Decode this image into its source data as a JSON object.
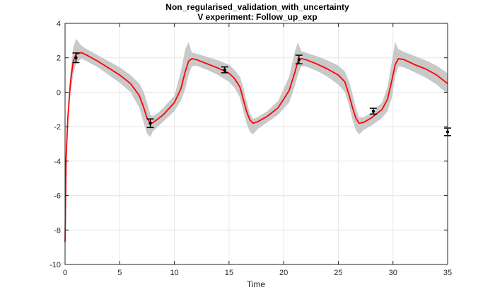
{
  "chart_data": {
    "type": "line",
    "title": "Non_regularised_validation_with_uncertainty",
    "subtitle": "V experiment: Follow_up_exp",
    "xlabel": "Time",
    "ylabel": "",
    "xlim": [
      0,
      35
    ],
    "ylim": [
      -10,
      4
    ],
    "xticks": [
      0,
      5,
      10,
      15,
      20,
      25,
      30,
      35
    ],
    "yticks": [
      -10,
      -8,
      -6,
      -4,
      -2,
      0,
      2,
      4
    ],
    "xtick_labels": [
      "0",
      "5",
      "10",
      "15",
      "20",
      "25",
      "30",
      "35"
    ],
    "ytick_labels": [
      "-10",
      "-8",
      "-6",
      "-4",
      "-2",
      "0",
      "2",
      "4"
    ],
    "grid": true,
    "box": true,
    "series": [
      {
        "kind": "line",
        "color": "#ff0000",
        "x": [
          0,
          0.1,
          0.25,
          0.5,
          0.75,
          1.0,
          1.5,
          2,
          3,
          4,
          5,
          6,
          6.8,
          7.2,
          7.5,
          7.8,
          8.0,
          8.5,
          9,
          10,
          10.6,
          11.0,
          11.3,
          11.6,
          12,
          13,
          14,
          15,
          15.5,
          16.0,
          16.3,
          16.6,
          16.9,
          17.2,
          17.6,
          18.5,
          19.5,
          20.5,
          21.0,
          21.3,
          21.6,
          22,
          23,
          24,
          25,
          25.6,
          26.0,
          26.3,
          26.6,
          26.9,
          27.3,
          28,
          29,
          29.5,
          29.9,
          30.2,
          30.5,
          31,
          32,
          33,
          34,
          35
        ],
        "y": [
          -8.7,
          -3.8,
          -1.5,
          0.6,
          1.8,
          2.2,
          2.3,
          2.15,
          1.8,
          1.4,
          1.0,
          0.5,
          -0.2,
          -0.9,
          -1.5,
          -1.8,
          -1.78,
          -1.55,
          -1.3,
          -0.6,
          0.2,
          1.2,
          1.8,
          1.95,
          1.9,
          1.65,
          1.4,
          1.1,
          0.8,
          0.3,
          -0.4,
          -1.1,
          -1.6,
          -1.8,
          -1.72,
          -1.4,
          -0.9,
          0.1,
          1.1,
          1.8,
          1.95,
          1.9,
          1.65,
          1.35,
          1.0,
          0.6,
          -0.2,
          -0.9,
          -1.5,
          -1.8,
          -1.75,
          -1.5,
          -1.0,
          -0.4,
          0.7,
          1.6,
          1.95,
          1.9,
          1.6,
          1.35,
          1.0,
          0.5
        ]
      },
      {
        "kind": "band",
        "color": "#c9c9c9",
        "x": [
          0,
          0.1,
          0.25,
          0.5,
          0.75,
          1.0,
          1.5,
          2,
          3,
          4,
          5,
          6,
          6.8,
          7.2,
          7.5,
          7.8,
          8.0,
          8.5,
          9,
          10,
          10.6,
          11.0,
          11.3,
          11.6,
          12,
          13,
          14,
          15,
          15.5,
          16.0,
          16.3,
          16.6,
          16.9,
          17.2,
          17.6,
          18.5,
          19.5,
          20.5,
          21.0,
          21.3,
          21.6,
          22,
          23,
          24,
          25,
          25.6,
          26.0,
          26.3,
          26.6,
          26.9,
          27.3,
          28,
          29,
          29.5,
          29.9,
          30.2,
          30.5,
          31,
          32,
          33,
          34,
          35
        ],
        "upper": [
          -8.6,
          -3.5,
          -1.1,
          1.2,
          2.6,
          3.1,
          2.7,
          2.5,
          2.15,
          1.8,
          1.45,
          1.0,
          0.5,
          0.0,
          -0.6,
          -1.3,
          -1.4,
          -1.2,
          -0.9,
          -0.2,
          1.2,
          2.5,
          2.9,
          2.3,
          2.25,
          2.05,
          1.85,
          1.6,
          1.3,
          0.9,
          0.3,
          -0.5,
          -1.2,
          -1.55,
          -1.45,
          -1.1,
          -0.5,
          0.9,
          2.3,
          2.9,
          2.4,
          2.3,
          2.1,
          1.85,
          1.55,
          1.2,
          0.6,
          -0.1,
          -0.9,
          -1.45,
          -1.45,
          -1.2,
          -0.6,
          0.3,
          1.8,
          2.9,
          2.5,
          2.35,
          2.1,
          1.85,
          1.55,
          1.1
        ],
        "lower": [
          -8.8,
          -4.1,
          -1.9,
          0.0,
          1.0,
          1.7,
          1.95,
          1.8,
          1.45,
          1.0,
          0.55,
          0.0,
          -0.9,
          -1.8,
          -2.4,
          -2.6,
          -2.3,
          -2.0,
          -1.7,
          -1.1,
          -0.5,
          0.2,
          1.0,
          1.5,
          1.55,
          1.3,
          1.0,
          0.6,
          0.25,
          -0.3,
          -1.1,
          -1.8,
          -2.3,
          -2.45,
          -2.15,
          -1.75,
          -1.3,
          -0.6,
          0.3,
          1.0,
          1.5,
          1.5,
          1.25,
          0.9,
          0.45,
          0.0,
          -0.8,
          -1.6,
          -2.2,
          -2.45,
          -2.2,
          -1.95,
          -1.5,
          -1.1,
          -0.3,
          0.9,
          1.5,
          1.45,
          1.15,
          0.85,
          0.45,
          -0.1
        ]
      },
      {
        "kind": "errorbar",
        "color": "#000000",
        "points": [
          {
            "x": 1.0,
            "y": 2.0,
            "err": 0.28
          },
          {
            "x": 7.8,
            "y": -1.8,
            "err": 0.25
          },
          {
            "x": 14.6,
            "y": 1.3,
            "err": 0.17
          },
          {
            "x": 21.4,
            "y": 1.9,
            "err": 0.25
          },
          {
            "x": 28.2,
            "y": -1.1,
            "err": 0.17
          },
          {
            "x": 35.0,
            "y": -2.3,
            "err": 0.22
          }
        ]
      }
    ]
  }
}
